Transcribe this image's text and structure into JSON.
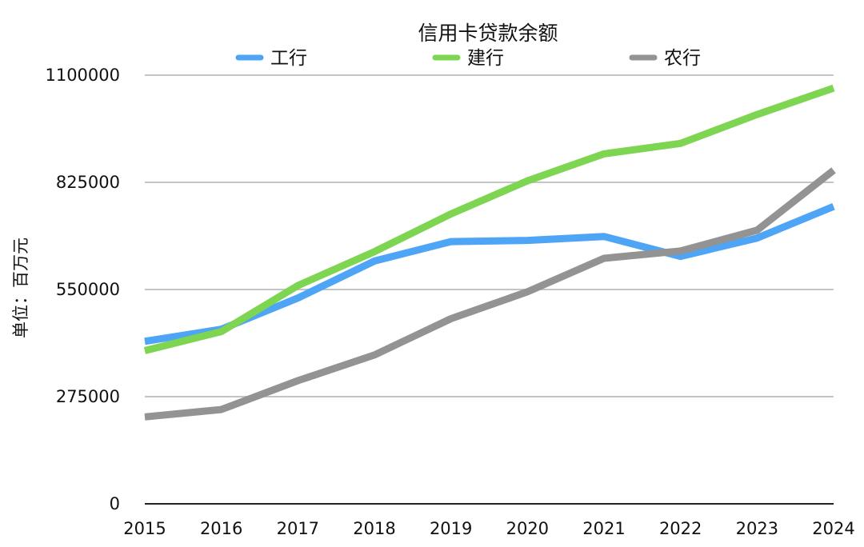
{
  "chart_data": {
    "type": "line",
    "title": "信用卡贷款余额",
    "xlabel": "",
    "ylabel": "单位：百万元",
    "categories": [
      "2015",
      "2016",
      "2017",
      "2018",
      "2019",
      "2020",
      "2021",
      "2022",
      "2023",
      "2024"
    ],
    "ylim": [
      0,
      1100000
    ],
    "yticks": [
      "0",
      "275000",
      "550000",
      "825000",
      "1100000"
    ],
    "grid": true,
    "legend_position": "top",
    "series": [
      {
        "name": "工行",
        "color": "#4ea4f5",
        "values": [
          417000,
          448000,
          528000,
          623000,
          673000,
          676000,
          686000,
          635000,
          682000,
          763000
        ]
      },
      {
        "name": "建行",
        "color": "#7ed551",
        "values": [
          393000,
          442000,
          560000,
          647000,
          744000,
          829000,
          898000,
          925000,
          999000,
          1067000
        ]
      },
      {
        "name": "农行",
        "color": "#939393",
        "values": [
          223000,
          242000,
          316000,
          382000,
          475000,
          544000,
          630000,
          649000,
          702000,
          856000
        ]
      }
    ]
  }
}
